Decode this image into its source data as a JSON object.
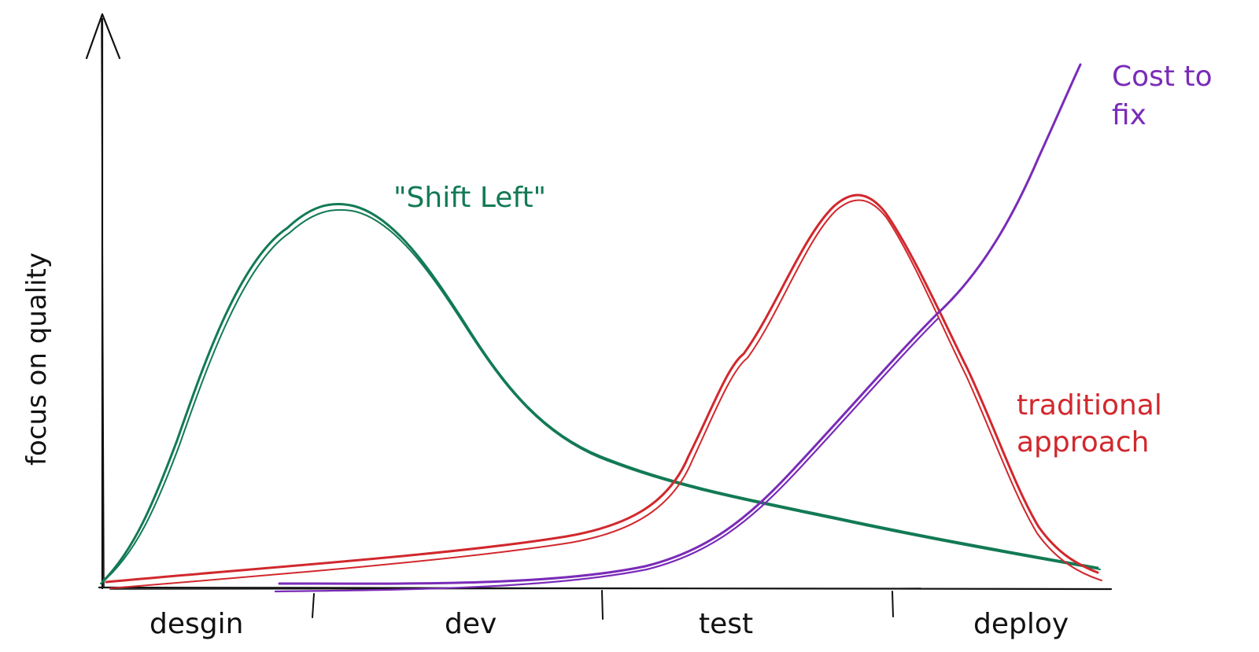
{
  "diagram": {
    "y_axis_label": "focus on quality",
    "phases": [
      "desgin",
      "dev",
      "test",
      "deploy"
    ],
    "annotations": {
      "shift_left": "\"Shift Left\"",
      "cost_to_fix_line1": "Cost to",
      "cost_to_fix_line2": "fix",
      "traditional_line1": "traditional",
      "traditional_line2": "approach"
    },
    "colors": {
      "axis": "#111111",
      "shift_left": "#127a54",
      "traditional": "#d1282d",
      "cost_to_fix": "#7a2bb8"
    }
  }
}
